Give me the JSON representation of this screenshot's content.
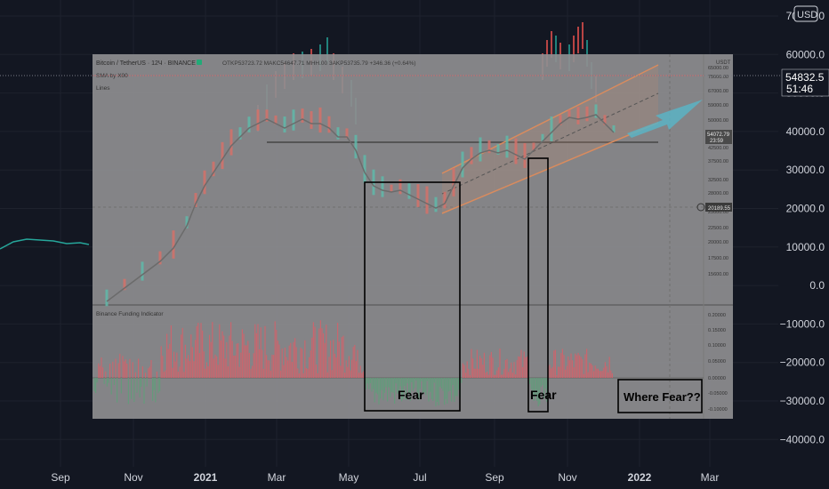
{
  "chart_data": {
    "type": "candlestick",
    "symbol_header": "Bitcoin / TetherUS · 12Ч · BINANCE",
    "ohlc_readout": "OTKP53723.72 MAKC54647.71 MHH.00 3AKP53735.79 +346.36 (+0.64%)",
    "currency": "USD",
    "last_price_label": "54832.5",
    "countdown_label": "51:46",
    "inset_last_price": "54072.79",
    "inset_countdown": "23:59",
    "inset_crosshair_price": "20189.55",
    "inset_currency": "USDT",
    "inset_indicators": [
      "SMA by X00",
      "Lines"
    ],
    "indicator_title": "Binance Funding Indicator",
    "x_ticks": [
      "Sep",
      "Nov",
      "2021",
      "Mar",
      "May",
      "Jul",
      "Sep",
      "Nov",
      "2022",
      "Mar"
    ],
    "y_ticks": [
      "70000.0",
      "60000.0",
      "50000.0",
      "40000.0",
      "30000.0",
      "20000.0",
      "10000.0",
      "0.0",
      "−10000.0",
      "−20000.0",
      "−30000.0",
      "−40000.0"
    ],
    "inset_price_ticks": [
      "65000.00",
      "75000.00",
      "67000.00",
      "59000.00",
      "50000.00",
      "45000.00",
      "42500.00",
      "37500.00",
      "32500.00",
      "28000.00",
      "25000.00",
      "22500.00",
      "20000.00",
      "17500.00",
      "15600.00"
    ],
    "inset_funding_ticks": [
      "0.20000",
      "0.15000",
      "0.10000",
      "0.05000",
      "0.00000",
      "-0.05000",
      "-0.10000"
    ],
    "annotations": [
      "Fear",
      "Fear",
      "Where Fear??"
    ],
    "price_series": [
      {
        "date": "2020-08",
        "close": 11500
      },
      {
        "date": "2020-09",
        "close": 10800
      },
      {
        "date": "2020-10",
        "close": 13800
      },
      {
        "date": "2020-11",
        "close": 19000
      },
      {
        "date": "2020-12",
        "close": 29000
      },
      {
        "date": "2021-01",
        "close": 33000
      },
      {
        "date": "2021-02",
        "close": 45000
      },
      {
        "date": "2021-03",
        "close": 58000
      },
      {
        "date": "2021-04",
        "close": 57000
      },
      {
        "date": "2021-05",
        "close": 37000
      },
      {
        "date": "2021-06",
        "close": 35000
      },
      {
        "date": "2021-07",
        "close": 41000
      },
      {
        "date": "2021-08",
        "close": 47000
      },
      {
        "date": "2021-09",
        "close": 43000
      },
      {
        "date": "2021-10",
        "close": 61000
      },
      {
        "date": "2021-11",
        "close": 57000
      },
      {
        "date": "2021-12",
        "close": 54800
      }
    ]
  }
}
